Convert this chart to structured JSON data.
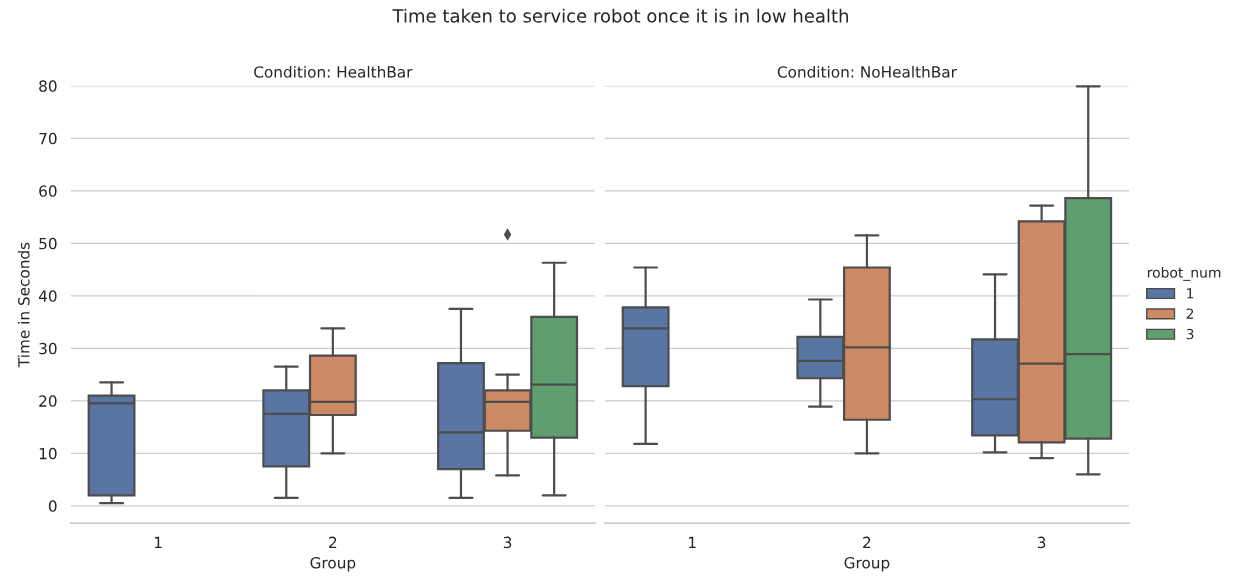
{
  "chart_data": [
    {
      "type": "box",
      "title": "Condition: HealthBar",
      "annotations": [
        "Time taken to service robot once it is in low health"
      ],
      "xlabel": "Group",
      "ylabel": "Time in Seconds",
      "categories": [
        "1",
        "2",
        "3"
      ],
      "ylim": [
        -3.3,
        80
      ],
      "yticks": [
        0,
        10,
        20,
        30,
        40,
        50,
        60,
        70,
        80
      ],
      "grid": "y",
      "series": [
        {
          "color": "#5975a4",
          "boxes": [
            {
              "low": 0.5,
              "q1": 2,
              "median": 19.5,
              "q3": 21,
              "high": 23.5
            },
            {
              "low": 1.5,
              "q1": 7.5,
              "median": 17.5,
              "q3": 22,
              "high": 26.5
            },
            {
              "low": 1.5,
              "q1": 7,
              "median": 14,
              "q3": 27.2,
              "high": 37.5
            }
          ]
        },
        {
          "color": "#cc8963",
          "boxes": [
            null,
            {
              "low": 10,
              "q1": 17.3,
              "median": 19.8,
              "q3": 28.6,
              "high": 33.8
            },
            {
              "low": 5.8,
              "q1": 14.3,
              "median": 19.8,
              "q3": 22,
              "high": 25,
              "outliers": [
                51.7
              ]
            }
          ]
        },
        {
          "color": "#5f9e6e",
          "boxes": [
            null,
            null,
            {
              "low": 2,
              "q1": 13,
              "median": 23.1,
              "q3": 36,
              "high": 46.3
            }
          ]
        }
      ]
    },
    {
      "type": "box",
      "title": "Condition: NoHealthBar",
      "xlabel": "Group",
      "categories": [
        "1",
        "2",
        "3"
      ],
      "ylim": [
        -3.3,
        80
      ],
      "yticks": [
        0,
        10,
        20,
        30,
        40,
        50,
        60,
        70,
        80
      ],
      "grid": "y",
      "legend": "right",
      "legend_title": "robot_num",
      "tick_labels": "x",
      "series": [
        {
          "name": "1",
          "color": "#5975a4",
          "boxes": [
            {
              "low": 11.8,
              "q1": 22.8,
              "median": 33.8,
              "q3": 37.8,
              "high": 45.4
            },
            {
              "low": 18.9,
              "q1": 24.3,
              "median": 27.6,
              "q3": 32.2,
              "high": 39.3
            },
            {
              "low": 10.2,
              "q1": 13.4,
              "median": 20.3,
              "q3": 31.7,
              "high": 44.1
            }
          ]
        },
        {
          "name": "2",
          "color": "#cc8963",
          "boxes": [
            null,
            {
              "low": 10,
              "q1": 16.4,
              "median": 30.2,
              "q3": 45.4,
              "high": 51.5
            },
            {
              "low": 9.1,
              "q1": 12.1,
              "median": 27.1,
              "q3": 54.2,
              "high": 57.2
            }
          ]
        },
        {
          "name": "3",
          "color": "#5f9e6e",
          "boxes": [
            null,
            null,
            {
              "low": 6,
              "q1": 12.8,
              "median": 28.9,
              "q3": 58.6,
              "high": 79.9
            }
          ]
        }
      ]
    }
  ]
}
